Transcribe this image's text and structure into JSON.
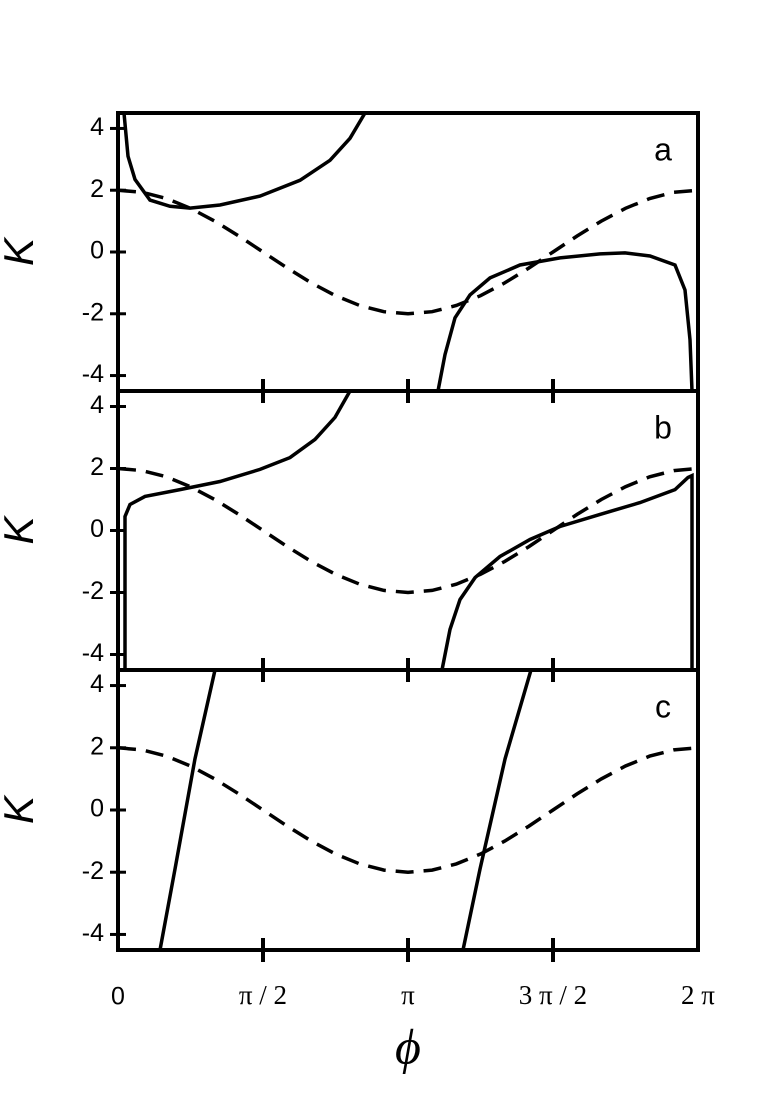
{
  "chart_data": [
    {
      "type": "line",
      "annotation": "a",
      "ylabel": "K",
      "xlim": [
        0,
        6.2832
      ],
      "ylim": [
        -4.5,
        4.5
      ],
      "yticks": [
        4,
        2,
        0,
        -2,
        -4
      ],
      "series": [
        {
          "color": "#000000",
          "linestyle": "dashed",
          "x": [
            0,
            0.262,
            0.524,
            0.785,
            1.047,
            1.309,
            1.571,
            1.833,
            2.094,
            2.356,
            2.618,
            2.88,
            3.142,
            3.403,
            3.665,
            3.927,
            4.189,
            4.451,
            4.712,
            4.974,
            5.236,
            5.498,
            5.76,
            6.021,
            6.283
          ],
          "values": [
            2,
            1.932,
            1.732,
            1.414,
            1,
            0.518,
            0,
            -0.518,
            -1,
            -1.414,
            -1.732,
            -1.932,
            -2,
            -1.932,
            -1.732,
            -1.414,
            -1,
            -0.518,
            0,
            0.518,
            1,
            1.414,
            1.732,
            1.932,
            2
          ]
        },
        {
          "color": "#000000",
          "linestyle": "solid",
          "x": [
            0.065,
            0.108,
            0.184,
            0.347,
            0.563,
            0.78,
            1.105,
            1.538,
            1.972,
            2.297,
            2.513,
            2.676
          ],
          "values": [
            4.5,
            3.1,
            2.35,
            1.68,
            1.48,
            1.42,
            1.52,
            1.81,
            2.32,
            2.97,
            3.68,
            4.5
          ]
        },
        {
          "color": "#000000",
          "linestyle": "solid",
          "x": [
            3.467,
            3.542,
            3.651,
            3.813,
            4.03,
            4.355,
            4.788,
            5.222,
            5.492,
            5.763,
            6.034,
            6.142,
            6.196,
            6.218
          ],
          "values": [
            -4.5,
            -3.32,
            -2.13,
            -1.39,
            -0.84,
            -0.42,
            -0.19,
            -0.06,
            -0.03,
            -0.13,
            -0.42,
            -1.23,
            -2.84,
            -4.5
          ]
        }
      ]
    },
    {
      "type": "line",
      "annotation": "b",
      "ylabel": "K",
      "xlim": [
        0,
        6.2832
      ],
      "ylim": [
        -4.5,
        4.5
      ],
      "yticks": [
        4,
        2,
        0,
        -2,
        -4
      ],
      "series": [
        {
          "color": "#000000",
          "linestyle": "dashed",
          "x": [
            0,
            0.262,
            0.524,
            0.785,
            1.047,
            1.309,
            1.571,
            1.833,
            2.094,
            2.356,
            2.618,
            2.88,
            3.142,
            3.403,
            3.665,
            3.927,
            4.189,
            4.451,
            4.712,
            4.974,
            5.236,
            5.498,
            5.76,
            6.021,
            6.283
          ],
          "values": [
            2,
            1.932,
            1.732,
            1.414,
            1,
            0.518,
            0,
            -0.518,
            -1,
            -1.414,
            -1.732,
            -1.932,
            -2,
            -1.932,
            -1.732,
            -1.414,
            -1,
            -0.518,
            0,
            0.518,
            1,
            1.414,
            1.732,
            1.932,
            2
          ]
        },
        {
          "color": "#000000",
          "linestyle": "solid",
          "x": [
            0.076,
            0.076,
            0.13,
            0.292,
            0.672,
            1.105,
            1.538,
            1.863,
            2.134,
            2.351,
            2.513
          ],
          "values": [
            -4.5,
            0.45,
            0.84,
            1.1,
            1.32,
            1.58,
            1.97,
            2.35,
            2.94,
            3.65,
            4.5
          ]
        },
        {
          "color": "#000000",
          "linestyle": "solid",
          "x": [
            3.51,
            3.597,
            3.705,
            3.868,
            4.138,
            4.463,
            4.788,
            5.222,
            5.655,
            6.034,
            6.175,
            6.218,
            6.218
          ],
          "values": [
            -4.5,
            -3.19,
            -2.23,
            -1.52,
            -0.84,
            -0.29,
            0.13,
            0.52,
            0.9,
            1.32,
            1.71,
            1.77,
            -4.5
          ]
        }
      ]
    },
    {
      "type": "line",
      "annotation": "c",
      "ylabel": "K",
      "xlabel": "ϕ",
      "xlim": [
        0,
        6.2832
      ],
      "ylim": [
        -4.5,
        4.5
      ],
      "yticks": [
        4,
        2,
        0,
        -2,
        -4
      ],
      "xticks": [
        0,
        {
          "value": 1.5708,
          "label": "π / 2"
        },
        {
          "value": 3.1416,
          "label": "π"
        },
        {
          "value": 4.7124,
          "label": "3 π / 2"
        },
        {
          "value": 6.2832,
          "label": "2 π"
        }
      ],
      "series": [
        {
          "color": "#000000",
          "linestyle": "dashed",
          "x": [
            0,
            0.262,
            0.524,
            0.785,
            1.047,
            1.309,
            1.571,
            1.833,
            2.094,
            2.356,
            2.618,
            2.88,
            3.142,
            3.403,
            3.665,
            3.927,
            4.189,
            4.451,
            4.712,
            4.974,
            5.236,
            5.498,
            5.76,
            6.021,
            6.283
          ],
          "values": [
            2,
            1.932,
            1.732,
            1.414,
            1,
            0.518,
            0,
            -0.518,
            -1,
            -1.414,
            -1.732,
            -1.932,
            -2,
            -1.932,
            -1.732,
            -1.414,
            -1,
            -0.518,
            0,
            0.518,
            1,
            1.414,
            1.732,
            1.932,
            2
          ]
        },
        {
          "color": "#000000",
          "linestyle": "solid",
          "x": [
            0.455,
            0.617,
            0.834,
            1.051
          ],
          "values": [
            -4.5,
            -1.9,
            1.65,
            4.5
          ]
        },
        {
          "color": "#000000",
          "linestyle": "solid",
          "x": [
            3.737,
            3.922,
            4.193,
            4.474
          ],
          "values": [
            -4.5,
            -1.9,
            1.65,
            4.5
          ]
        }
      ]
    }
  ]
}
